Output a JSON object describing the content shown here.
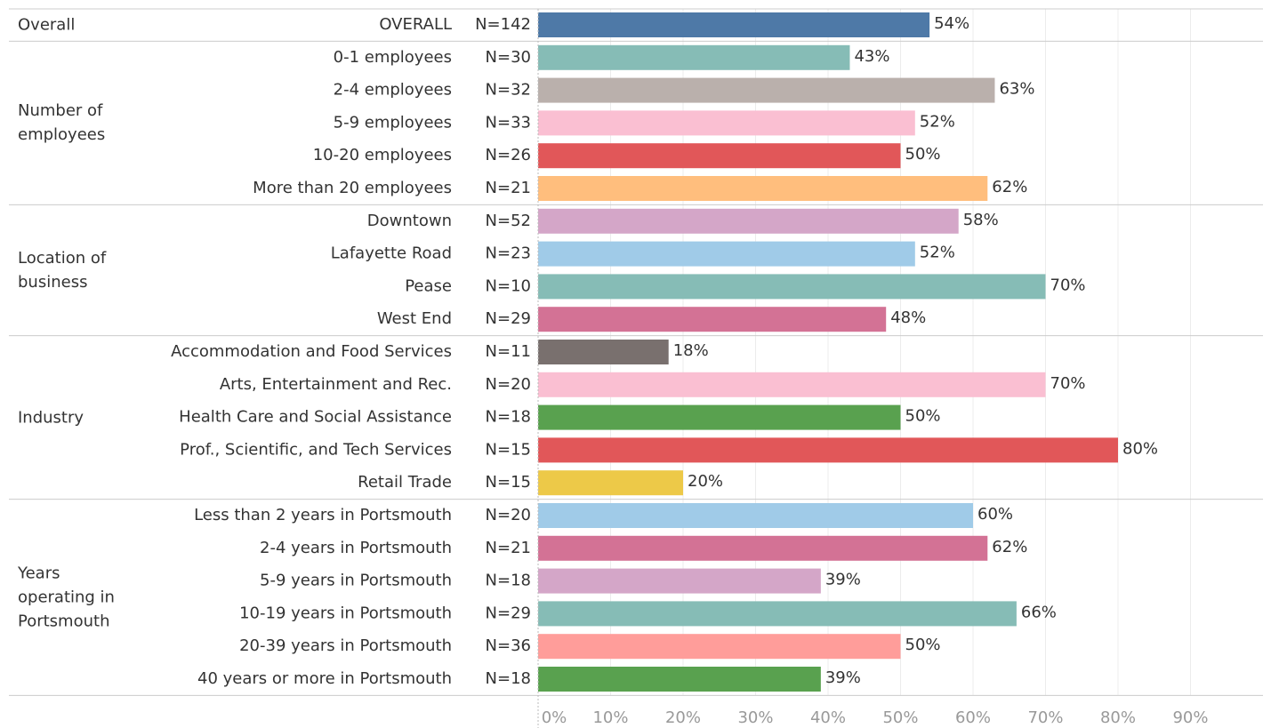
{
  "chart_data": {
    "type": "bar",
    "orientation": "horizontal",
    "xlim": [
      0,
      100
    ],
    "xticks": [
      {
        "value": 0,
        "label": "0%"
      },
      {
        "value": 10,
        "label": "10%"
      },
      {
        "value": 20,
        "label": "20%"
      },
      {
        "value": 30,
        "label": "30%"
      },
      {
        "value": 40,
        "label": "40%"
      },
      {
        "value": 50,
        "label": "50%"
      },
      {
        "value": 60,
        "label": "60%"
      },
      {
        "value": 70,
        "label": "70%"
      },
      {
        "value": 80,
        "label": "80%"
      },
      {
        "value": 90,
        "label": "90%"
      }
    ],
    "grid": true,
    "groups": [
      {
        "label": "Overall",
        "categories": [
          "OVERALL"
        ],
        "n_labels": [
          "N=142"
        ],
        "values": [
          54
        ],
        "value_labels": [
          "54%"
        ],
        "colors": [
          "#4e79a7"
        ]
      },
      {
        "label": "Number of employees",
        "categories": [
          "0-1 employees",
          "2-4 employees",
          "5-9 employees",
          "10-20 employees",
          "More than 20 employees"
        ],
        "n_labels": [
          "N=30",
          "N=32",
          "N=33",
          "N=26",
          "N=21"
        ],
        "values": [
          43,
          63,
          52,
          50,
          62
        ],
        "value_labels": [
          "43%",
          "63%",
          "52%",
          "50%",
          "62%"
        ],
        "colors": [
          "#86bcb6",
          "#bab0ac",
          "#fabfd2",
          "#e15759",
          "#ffbe7d"
        ]
      },
      {
        "label": "Location of business",
        "categories": [
          "Downtown",
          "Lafayette Road",
          "Pease",
          "West End"
        ],
        "n_labels": [
          "N=52",
          "N=23",
          "N=10",
          "N=29"
        ],
        "values": [
          58,
          52,
          70,
          48
        ],
        "value_labels": [
          "58%",
          "52%",
          "70%",
          "48%"
        ],
        "colors": [
          "#d4a6c8",
          "#a0cbe8",
          "#86bcb6",
          "#d37295"
        ]
      },
      {
        "label": "Industry",
        "categories": [
          "Accommodation and Food Services",
          "Arts, Entertainment and Rec.",
          "Health Care and Social Assistance",
          "Prof., Scientific, and Tech Services",
          "Retail Trade"
        ],
        "n_labels": [
          "N=11",
          "N=20",
          "N=18",
          "N=15",
          "N=15"
        ],
        "values": [
          18,
          70,
          50,
          80,
          20
        ],
        "value_labels": [
          "18%",
          "70%",
          "50%",
          "80%",
          "20%"
        ],
        "colors": [
          "#79706e",
          "#fabfd2",
          "#59a14f",
          "#e15759",
          "#edc948"
        ]
      },
      {
        "label": "Years operating in Portsmouth",
        "categories": [
          "Less than 2 years in Portsmouth",
          "2-4 years in Portsmouth",
          "5-9 years in Portsmouth",
          "10-19 years in Portsmouth",
          "20-39 years in Portsmouth",
          "40 years or more in Portsmouth"
        ],
        "n_labels": [
          "N=20",
          "N=21",
          "N=18",
          "N=29",
          "N=36",
          "N=18"
        ],
        "values": [
          60,
          62,
          39,
          66,
          50,
          39
        ],
        "value_labels": [
          "60%",
          "62%",
          "39%",
          "66%",
          "50%",
          "39%"
        ],
        "colors": [
          "#a0cbe8",
          "#d37295",
          "#d4a6c8",
          "#86bcb6",
          "#ff9d9a",
          "#59a14f"
        ]
      }
    ]
  }
}
